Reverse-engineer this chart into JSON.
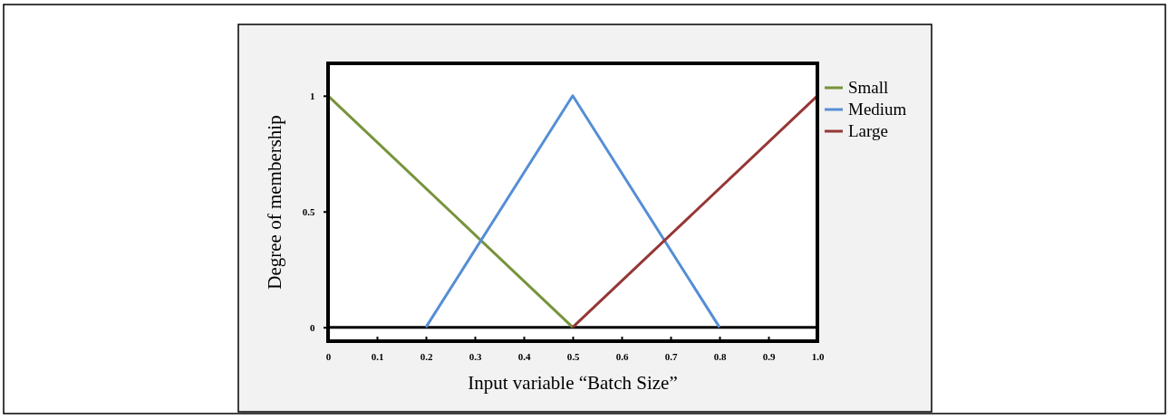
{
  "chart_data": {
    "type": "line",
    "xlabel": "Input variable “Batch Size”",
    "ylabel": "Degree of membership",
    "xlim": [
      0,
      1
    ],
    "xticks": [
      0,
      0.1,
      0.2,
      0.3,
      0.4,
      0.5,
      0.6,
      0.7,
      0.8,
      0.9,
      {
        "value": 1,
        "label": "1.0"
      }
    ],
    "ylim": [
      -0.06,
      1.14
    ],
    "yticks": [
      0,
      0.5,
      1
    ],
    "series": [
      {
        "name": "Small",
        "color": "#77933c",
        "x": [
          0,
          0.5
        ],
        "values": [
          1,
          0
        ]
      },
      {
        "name": "Medium",
        "color": "#558ed5",
        "x": [
          0.2,
          0.5,
          0.8
        ],
        "values": [
          0,
          1,
          0
        ]
      },
      {
        "name": "Large",
        "color": "#953735",
        "x": [
          0.5,
          1
        ],
        "values": [
          0,
          1
        ]
      }
    ],
    "ref_lines": [
      {
        "axis": "y",
        "value": 0,
        "color": "#000000"
      }
    ],
    "legend": "top right",
    "grid": false,
    "marker": "none",
    "line_style": "solid"
  }
}
